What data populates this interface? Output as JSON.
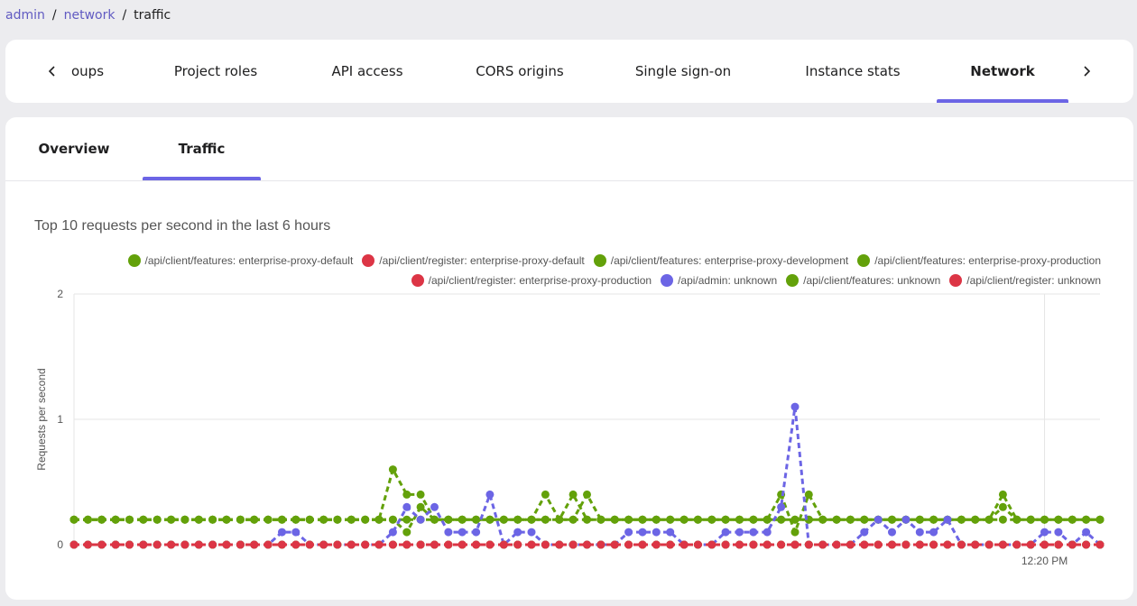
{
  "breadcrumb": {
    "items": [
      "admin",
      "network"
    ],
    "current": "traffic",
    "separator": "/"
  },
  "tabs": [
    {
      "label": "oups",
      "active": false
    },
    {
      "label": "Project roles",
      "active": false
    },
    {
      "label": "API access",
      "active": false
    },
    {
      "label": "CORS origins",
      "active": false
    },
    {
      "label": "Single sign-on",
      "active": false
    },
    {
      "label": "Instance stats",
      "active": false
    },
    {
      "label": "Network",
      "active": true
    }
  ],
  "subtabs": [
    {
      "label": "Overview",
      "active": false
    },
    {
      "label": "Traffic",
      "active": true
    }
  ],
  "colors": {
    "accent": "#6c65e5",
    "green": "#63a10a",
    "red": "#dc3545",
    "purple": "#6c65e5"
  },
  "chart_data": {
    "type": "line",
    "title": "Top 10 requests per second in the last 6 hours",
    "ylabel": "Requests per second",
    "xlabel": "",
    "ylim": [
      0,
      2
    ],
    "yticks": [
      0,
      1,
      2
    ],
    "xticks": [
      {
        "index": 70,
        "label": "12:20 PM"
      }
    ],
    "grid": true,
    "legend_position": "top-right",
    "series": [
      {
        "name": "/api/client/features: enterprise-proxy-default",
        "color": "#63a10a",
        "values": [
          0.2,
          0.2,
          0.2,
          0.2,
          0.2,
          0.2,
          0.2,
          0.2,
          0.2,
          0.2,
          0.2,
          0.2,
          0.2,
          0.2,
          0.2,
          0.2,
          0.2,
          0.2,
          0.2,
          0.2,
          0.2,
          0.2,
          0.2,
          0.6,
          0.4,
          0.4,
          0.2,
          0.2,
          0.2,
          0.2,
          0.2,
          0.2,
          0.2,
          0.2,
          0.4,
          0.2,
          0.4,
          0.2,
          0.2,
          0.2,
          0.2,
          0.2,
          0.2,
          0.2,
          0.2,
          0.2,
          0.2,
          0.2,
          0.2,
          0.2,
          0.2,
          0.4,
          0.1,
          0.4,
          0.2,
          0.2,
          0.2,
          0.2,
          0.2,
          0.2,
          0.2,
          0.2,
          0.2,
          0.2,
          0.2,
          0.2,
          0.2,
          0.4,
          0.2,
          0.2,
          0.2,
          0.2,
          0.2,
          0.2,
          0.2
        ]
      },
      {
        "name": "/api/client/register: enterprise-proxy-default",
        "color": "#dc3545",
        "values": [
          0,
          0,
          0,
          0,
          0,
          0,
          0,
          0,
          0,
          0,
          0,
          0,
          0,
          0,
          0,
          0,
          0,
          0,
          0,
          0,
          0,
          0,
          0,
          0,
          0,
          0,
          0,
          0,
          0,
          0,
          0,
          0,
          0,
          0,
          0,
          0,
          0,
          0,
          0,
          0,
          0,
          0,
          0,
          0,
          0,
          0,
          0,
          0,
          0,
          0,
          0,
          0,
          0,
          0,
          0,
          0,
          0,
          0,
          0,
          0,
          0,
          0,
          0,
          0,
          0,
          0,
          0,
          0,
          0,
          0,
          0,
          0,
          0,
          0,
          0
        ]
      },
      {
        "name": "/api/client/features: enterprise-proxy-development",
        "color": "#63a10a",
        "values": [
          0.2,
          0.2,
          0.2,
          0.2,
          0.2,
          0.2,
          0.2,
          0.2,
          0.2,
          0.2,
          0.2,
          0.2,
          0.2,
          0.2,
          0.2,
          0.2,
          0.2,
          0.2,
          0.2,
          0.2,
          0.2,
          0.2,
          0.2,
          0.2,
          0.1,
          0.3,
          0.2,
          0.2,
          0.2,
          0.2,
          0.2,
          0.2,
          0.2,
          0.2,
          0.2,
          0.2,
          0.2,
          0.2,
          0.2,
          0.2,
          0.2,
          0.2,
          0.2,
          0.2,
          0.2,
          0.2,
          0.2,
          0.2,
          0.2,
          0.2,
          0.2,
          0.2,
          0.2,
          0.2,
          0.2,
          0.2,
          0.2,
          0.2,
          0.2,
          0.2,
          0.2,
          0.2,
          0.2,
          0.2,
          0.2,
          0.2,
          0.2,
          0.3,
          0.2,
          0.2,
          0.2,
          0.2,
          0.2,
          0.2,
          0.2
        ]
      },
      {
        "name": "/api/client/features: enterprise-proxy-production",
        "color": "#63a10a",
        "values": [
          0.2,
          0.2,
          0.2,
          0.2,
          0.2,
          0.2,
          0.2,
          0.2,
          0.2,
          0.2,
          0.2,
          0.2,
          0.2,
          0.2,
          0.2,
          0.2,
          0.2,
          0.2,
          0.2,
          0.2,
          0.2,
          0.2,
          0.2,
          0.2,
          0.2,
          0.2,
          0.2,
          0.2,
          0.2,
          0.2,
          0.2,
          0.2,
          0.2,
          0.2,
          0.2,
          0.2,
          0.2,
          0.4,
          0.2,
          0.2,
          0.2,
          0.2,
          0.2,
          0.2,
          0.2,
          0.2,
          0.2,
          0.2,
          0.2,
          0.2,
          0.2,
          0.2,
          0.2,
          0.2,
          0.2,
          0.2,
          0.2,
          0.2,
          0.2,
          0.2,
          0.2,
          0.2,
          0.2,
          0.2,
          0.2,
          0.2,
          0.2,
          0.2,
          0.2,
          0.2,
          0.2,
          0.2,
          0.2,
          0.2,
          0.2
        ]
      },
      {
        "name": "/api/client/register: enterprise-proxy-production",
        "color": "#dc3545",
        "values": [
          0,
          0,
          0,
          0,
          0,
          0,
          0,
          0,
          0,
          0,
          0,
          0,
          0,
          0,
          0,
          0,
          0,
          0,
          0,
          0,
          0,
          0,
          0,
          0,
          0,
          0,
          0,
          0,
          0,
          0,
          0,
          0,
          0,
          0,
          0,
          0,
          0,
          0,
          0,
          0,
          0,
          0,
          0,
          0,
          0,
          0,
          0,
          0,
          0,
          0,
          0,
          0,
          0,
          0,
          0,
          0,
          0,
          0,
          0,
          0,
          0,
          0,
          0,
          0,
          0,
          0,
          0,
          0,
          0,
          0,
          0,
          0,
          0,
          0,
          0
        ]
      },
      {
        "name": "/api/admin: unknown",
        "color": "#6c65e5",
        "values": [
          0,
          0,
          0,
          0,
          0,
          0,
          0,
          0,
          0,
          0,
          0,
          0,
          0,
          0,
          0,
          0.1,
          0.1,
          0,
          0,
          0,
          0,
          0,
          0,
          0.1,
          0.3,
          0.2,
          0.3,
          0.1,
          0.1,
          0.1,
          0.4,
          0,
          0.1,
          0.1,
          0,
          0,
          0,
          0,
          0,
          0,
          0.1,
          0.1,
          0.1,
          0.1,
          0,
          0,
          0,
          0.1,
          0.1,
          0.1,
          0.1,
          0.3,
          1.1,
          0,
          0,
          0,
          0,
          0.1,
          0.2,
          0.1,
          0.2,
          0.1,
          0.1,
          0.2,
          0,
          0,
          0,
          0,
          0,
          0,
          0.1,
          0.1,
          0,
          0.1,
          0
        ]
      },
      {
        "name": "/api/client/features: unknown",
        "color": "#63a10a",
        "values": [
          0,
          0,
          0,
          0,
          0,
          0,
          0,
          0,
          0,
          0,
          0,
          0,
          0,
          0,
          0,
          0,
          0,
          0,
          0,
          0,
          0,
          0,
          0,
          0,
          0,
          0,
          0,
          0,
          0,
          0,
          0,
          0,
          0,
          0,
          0,
          0,
          0,
          0,
          0,
          0,
          0,
          0,
          0,
          0,
          0,
          0,
          0,
          0,
          0,
          0,
          0,
          0,
          0,
          0,
          0,
          0,
          0,
          0,
          0,
          0,
          0,
          0,
          0,
          0,
          0,
          0,
          0,
          0,
          0,
          0,
          0,
          0,
          0,
          0,
          0
        ]
      },
      {
        "name": "/api/client/register: unknown",
        "color": "#dc3545",
        "values": [
          0,
          0,
          0,
          0,
          0,
          0,
          0,
          0,
          0,
          0,
          0,
          0,
          0,
          0,
          0,
          0,
          0,
          0,
          0,
          0,
          0,
          0,
          0,
          0,
          0,
          0,
          0,
          0,
          0,
          0,
          0,
          0,
          0,
          0,
          0,
          0,
          0,
          0,
          0,
          0,
          0,
          0,
          0,
          0,
          0,
          0,
          0,
          0,
          0,
          0,
          0,
          0,
          0,
          0,
          0,
          0,
          0,
          0,
          0,
          0,
          0,
          0,
          0,
          0,
          0,
          0,
          0,
          0,
          0,
          0,
          0,
          0,
          0,
          0,
          0
        ]
      }
    ]
  }
}
